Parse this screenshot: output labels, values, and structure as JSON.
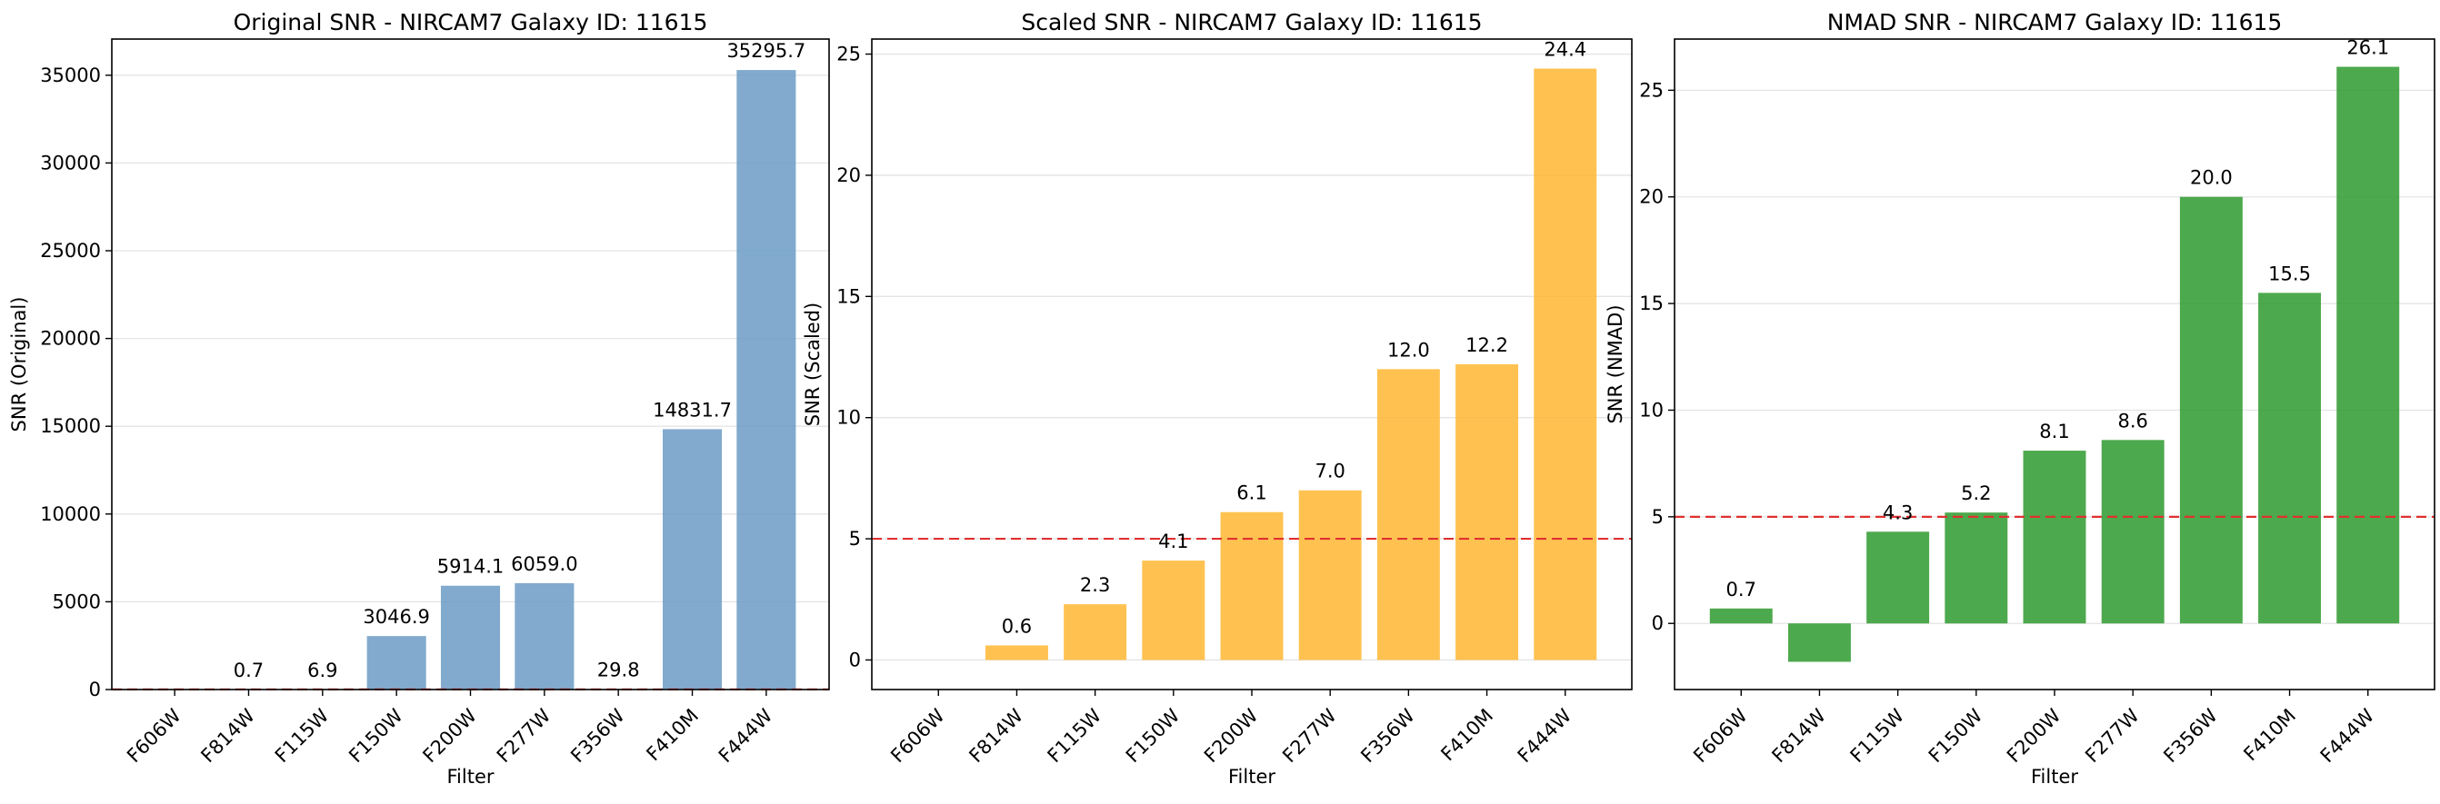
{
  "chart_data": [
    {
      "type": "bar",
      "title": "Original SNR - NIRCAM7 Galaxy ID: 11615",
      "xlabel": "Filter",
      "ylabel": "SNR (Original)",
      "categories": [
        "F606W",
        "F814W",
        "F115W",
        "F150W",
        "F200W",
        "F277W",
        "F356W",
        "F410M",
        "F444W"
      ],
      "values": [
        null,
        0.7,
        6.9,
        3046.9,
        5914.1,
        6059.0,
        29.8,
        14831.7,
        35295.7
      ],
      "value_labels": [
        "",
        "0.7",
        "6.9",
        "3046.9",
        "5914.1",
        "6059.0",
        "29.8",
        "14831.7",
        "35295.7"
      ],
      "ylim": [
        0,
        37060
      ],
      "yticks": [
        0,
        5000,
        10000,
        15000,
        20000,
        25000,
        30000,
        35000
      ],
      "ytick_labels": [
        "0",
        "5000",
        "10000",
        "15000",
        "20000",
        "25000",
        "30000",
        "35000"
      ],
      "threshold": 5,
      "bar_color": "#6b9bc6",
      "grid": true
    },
    {
      "type": "bar",
      "title": "Scaled SNR - NIRCAM7 Galaxy ID: 11615",
      "xlabel": "Filter",
      "ylabel": "SNR (Scaled)",
      "categories": [
        "F606W",
        "F814W",
        "F115W",
        "F150W",
        "F200W",
        "F277W",
        "F356W",
        "F410M",
        "F444W"
      ],
      "values": [
        null,
        0.6,
        2.3,
        4.1,
        6.1,
        7.0,
        12.0,
        12.2,
        24.4
      ],
      "value_labels": [
        "",
        "0.6",
        "2.3",
        "4.1",
        "6.1",
        "7.0",
        "12.0",
        "12.2",
        "24.4"
      ],
      "ylim": [
        -1.22,
        25.62
      ],
      "yticks": [
        0,
        5,
        10,
        15,
        20,
        25
      ],
      "ytick_labels": [
        "0",
        "5",
        "10",
        "15",
        "20",
        "25"
      ],
      "threshold": 5,
      "bar_color": "#ffb733",
      "grid": true
    },
    {
      "type": "bar",
      "title": "NMAD SNR - NIRCAM7 Galaxy ID: 11615",
      "xlabel": "Filter",
      "ylabel": "SNR (NMAD)",
      "categories": [
        "F606W",
        "F814W",
        "F115W",
        "F150W",
        "F200W",
        "F277W",
        "F356W",
        "F410M",
        "F444W"
      ],
      "values": [
        0.7,
        -1.8,
        4.3,
        5.2,
        8.1,
        8.6,
        20.0,
        15.5,
        26.1
      ],
      "value_labels": [
        "0.7",
        "",
        "4.3",
        "5.2",
        "8.1",
        "8.6",
        "20.0",
        "15.5",
        "26.1"
      ],
      "ylim": [
        -3.1,
        27.4
      ],
      "yticks": [
        0,
        5,
        10,
        15,
        20,
        25
      ],
      "ytick_labels": [
        "0",
        "5",
        "10",
        "15",
        "20",
        "25"
      ],
      "threshold": 5,
      "bar_color": "#2e9a2e",
      "grid": true
    }
  ],
  "colors": {
    "threshold_line": "#e03030",
    "grid": "#e4e4e4"
  }
}
